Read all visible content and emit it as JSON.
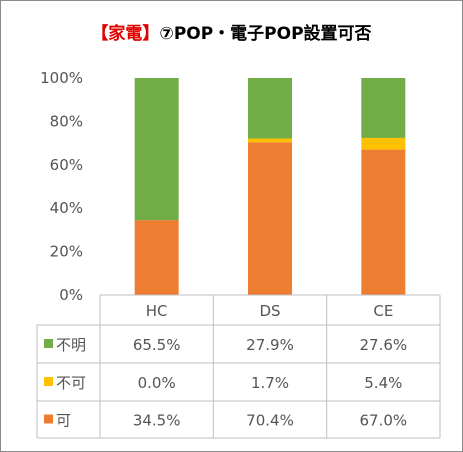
{
  "chart_data": {
    "type": "bar",
    "stacked": true,
    "title": "【家電】⑦POP・電子POP設置可否",
    "title_parts": {
      "highlight": "【家電】",
      "rest": "⑦POP・電子POP設置可否"
    },
    "categories": [
      "HC",
      "DS",
      "CE"
    ],
    "series": [
      {
        "name": "可",
        "color": "#ed7d31",
        "values": [
          34.5,
          70.4,
          67.0
        ],
        "labels": [
          "34.5%",
          "70.4%",
          "67.0%"
        ]
      },
      {
        "name": "不可",
        "color": "#ffc000",
        "values": [
          0.0,
          1.7,
          5.4
        ],
        "labels": [
          "0.0%",
          "1.7%",
          "5.4%"
        ]
      },
      {
        "name": "不明",
        "color": "#70ad47",
        "values": [
          65.5,
          27.9,
          27.6
        ],
        "labels": [
          "65.5%",
          "27.9%",
          "27.6%"
        ]
      }
    ],
    "table_row_order": [
      "不明",
      "不可",
      "可"
    ],
    "ylim": [
      0,
      100
    ],
    "yticks": [
      "0%",
      "20%",
      "40%",
      "60%",
      "80%",
      "100%"
    ],
    "grid": false,
    "data_table": true
  }
}
